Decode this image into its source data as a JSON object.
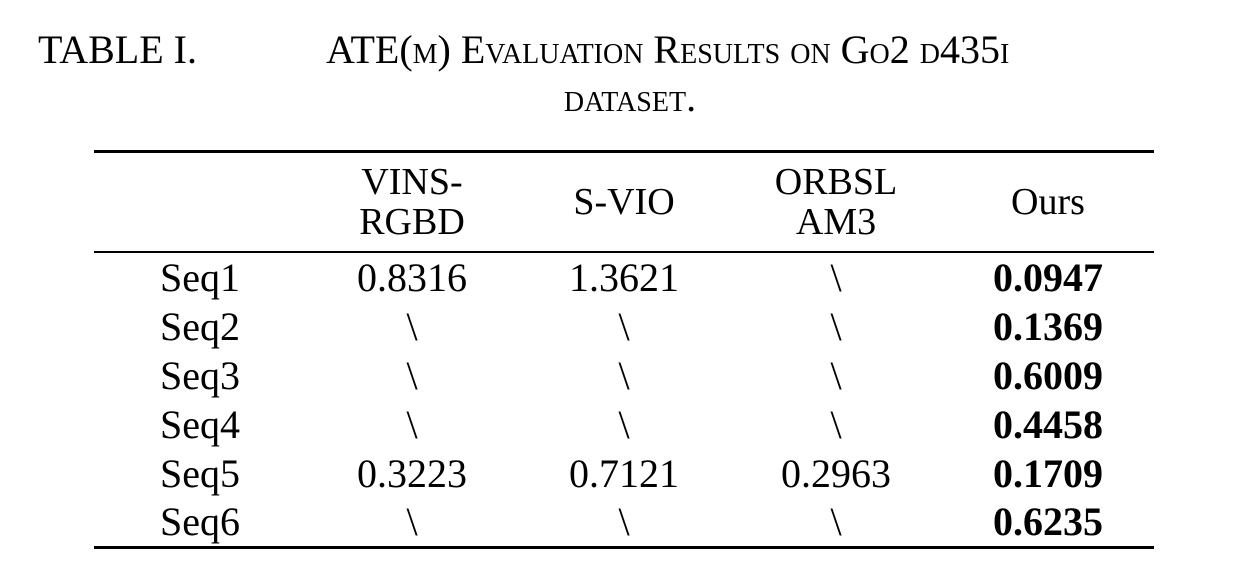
{
  "caption": {
    "label": "TABLE I.",
    "title_line1": "ATE(m) Evaluation Results on Go2 d435i",
    "title_line2": "dataset."
  },
  "table": {
    "columns": [
      {
        "line1": "",
        "line2": ""
      },
      {
        "line1": "VINS-",
        "line2": "RGBD"
      },
      {
        "line1": "S-VIO",
        "line2": ""
      },
      {
        "line1": "ORBSL",
        "line2": "AM3"
      },
      {
        "line1": "Ours",
        "line2": ""
      }
    ],
    "rows": [
      {
        "seq": "Seq1",
        "vins_rgbd": "0.8316",
        "s_vio": "1.3621",
        "orbslam3": "\\",
        "ours": "0.0947"
      },
      {
        "seq": "Seq2",
        "vins_rgbd": "\\",
        "s_vio": "\\",
        "orbslam3": "\\",
        "ours": "0.1369"
      },
      {
        "seq": "Seq3",
        "vins_rgbd": "\\",
        "s_vio": "\\",
        "orbslam3": "\\",
        "ours": "0.6009"
      },
      {
        "seq": "Seq4",
        "vins_rgbd": "\\",
        "s_vio": "\\",
        "orbslam3": "\\",
        "ours": "0.4458"
      },
      {
        "seq": "Seq5",
        "vins_rgbd": "0.3223",
        "s_vio": "0.7121",
        "orbslam3": "0.2963",
        "ours": "0.1709"
      },
      {
        "seq": "Seq6",
        "vins_rgbd": "\\",
        "s_vio": "\\",
        "orbslam3": "\\",
        "ours": "0.6235"
      }
    ]
  }
}
